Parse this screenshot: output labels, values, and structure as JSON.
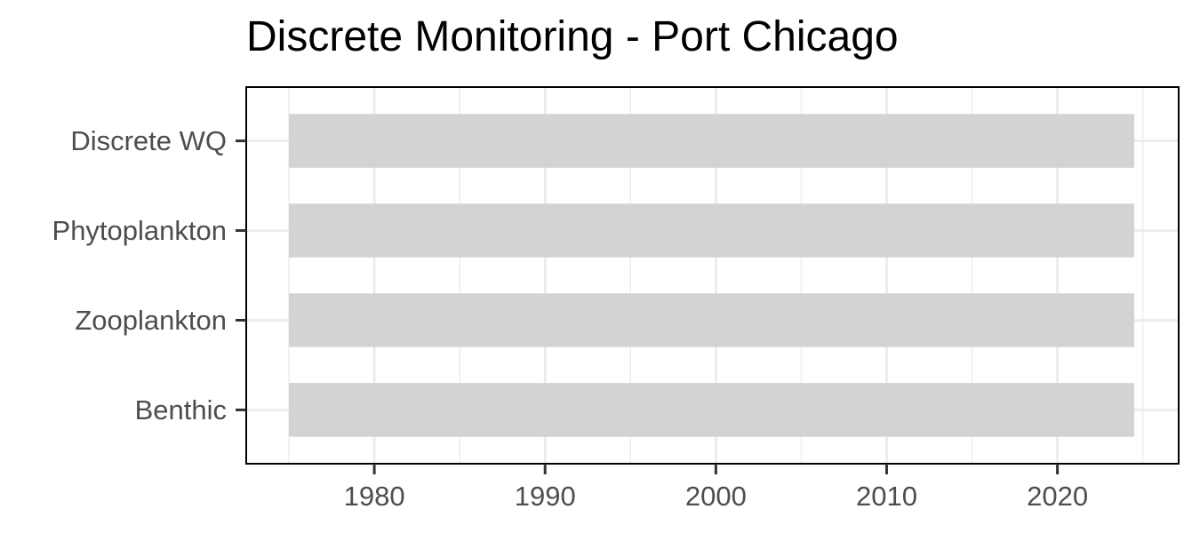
{
  "chart_data": {
    "type": "bar",
    "orientation": "horizontal",
    "chart_style": "timeline-range",
    "title": "Discrete Monitoring - Port Chicago",
    "xlabel": "",
    "ylabel": "",
    "categories": [
      "Discrete WQ",
      "Phytoplankton",
      "Zooplankton",
      "Benthic"
    ],
    "ranges": [
      {
        "category": "Discrete WQ",
        "start": 1975,
        "end": 2024.5
      },
      {
        "category": "Phytoplankton",
        "start": 1975,
        "end": 2024.5
      },
      {
        "category": "Zooplankton",
        "start": 1975,
        "end": 2024.5
      },
      {
        "category": "Benthic",
        "start": 1975,
        "end": 2024.5
      }
    ],
    "xlim": [
      1972.5,
      2027.1
    ],
    "xticks": [
      1980,
      1990,
      2000,
      2010,
      2020
    ],
    "xtick_labels": [
      "1980",
      "1990",
      "2000",
      "2010",
      "2020"
    ],
    "grid": true,
    "legend": "none",
    "bar_color": "#d3d3d3",
    "grid_color": "#ebebeb",
    "panel_border_color": "#000000",
    "tick_label_color": "#4d4d4d",
    "background": "#ffffff"
  }
}
